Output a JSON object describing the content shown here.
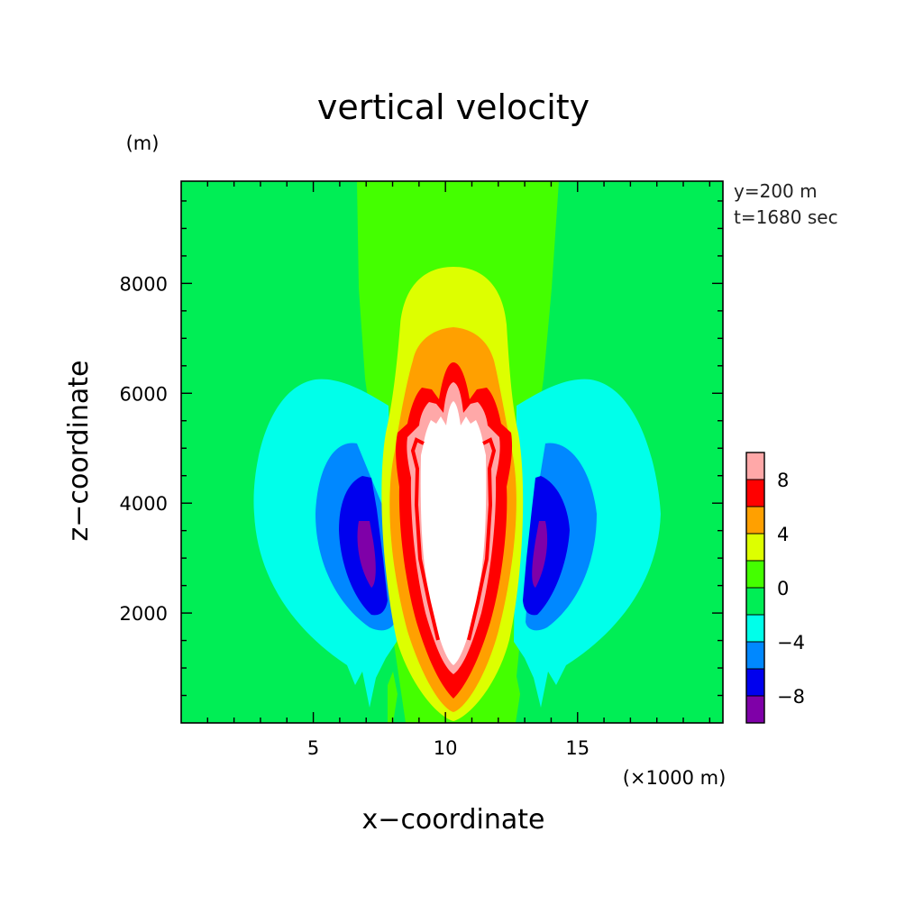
{
  "chart_data": {
    "type": "contour",
    "title": "vertical velocity",
    "xlabel": "x−coordinate",
    "ylabel": "z−coordinate",
    "x_unit": "(×1000 m)",
    "y_unit": "(m)",
    "xlim": [
      0,
      20.5
    ],
    "ylim": [
      0,
      9860
    ],
    "xticks": [
      5,
      10,
      15
    ],
    "yticks": [
      2000,
      4000,
      6000,
      8000
    ],
    "annotations": [
      "y=200 m",
      "t=1680 sec"
    ],
    "colorbar": {
      "min": -10,
      "max": 10,
      "tick_labels": [
        {
          "value": 8,
          "label": "8"
        },
        {
          "value": 4,
          "label": "4"
        },
        {
          "value": 0,
          "label": "0"
        },
        {
          "value": -4,
          "label": "−4"
        },
        {
          "value": -8,
          "label": "−8"
        }
      ],
      "levels": [
        {
          "from": -10,
          "to": -8,
          "color": "#7f00a8"
        },
        {
          "from": -8,
          "to": -6,
          "color": "#0000ee"
        },
        {
          "from": -6,
          "to": -4,
          "color": "#0088ff"
        },
        {
          "from": -4,
          "to": -2,
          "color": "#00ffea"
        },
        {
          "from": -2,
          "to": 0,
          "color": "#00ee55"
        },
        {
          "from": 0,
          "to": 2,
          "color": "#44ff00"
        },
        {
          "from": 2,
          "to": 4,
          "color": "#ddff00"
        },
        {
          "from": 4,
          "to": 6,
          "color": "#ffa000"
        },
        {
          "from": 6,
          "to": 8,
          "color": "#ff0000"
        },
        {
          "from": 8,
          "to": 10,
          "color": "#ffa8a8"
        }
      ],
      "above_max_color": "#ffffff"
    },
    "background_color": "#00ee55"
  }
}
